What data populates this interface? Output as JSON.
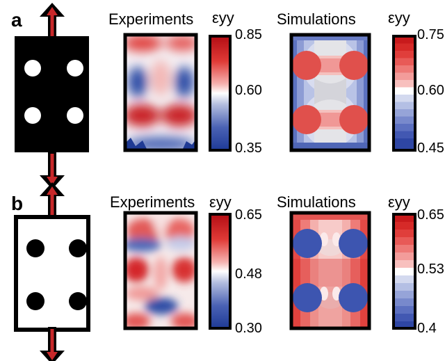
{
  "figure": {
    "panels": [
      {
        "letter": "a",
        "specimen": "black",
        "experiments": {
          "title": "Experiments",
          "symbol": "εyy",
          "colorbar": {
            "max": "0.85",
            "mid": "0.60",
            "min": "0.35"
          }
        },
        "simulations": {
          "title": "Simulations",
          "symbol": "εyy",
          "colorbar": {
            "max": "0.75",
            "mid": "0.60",
            "min": "0.45"
          }
        }
      },
      {
        "letter": "b",
        "specimen": "white",
        "experiments": {
          "title": "Experiments",
          "symbol": "εyy",
          "colorbar": {
            "max": "0.65",
            "mid": "0.48",
            "min": "0.30"
          }
        },
        "simulations": {
          "title": "Simulations",
          "symbol": "εyy",
          "colorbar": {
            "max": "0.65",
            "mid": "0.53",
            "min": "0.4"
          }
        }
      }
    ]
  }
}
